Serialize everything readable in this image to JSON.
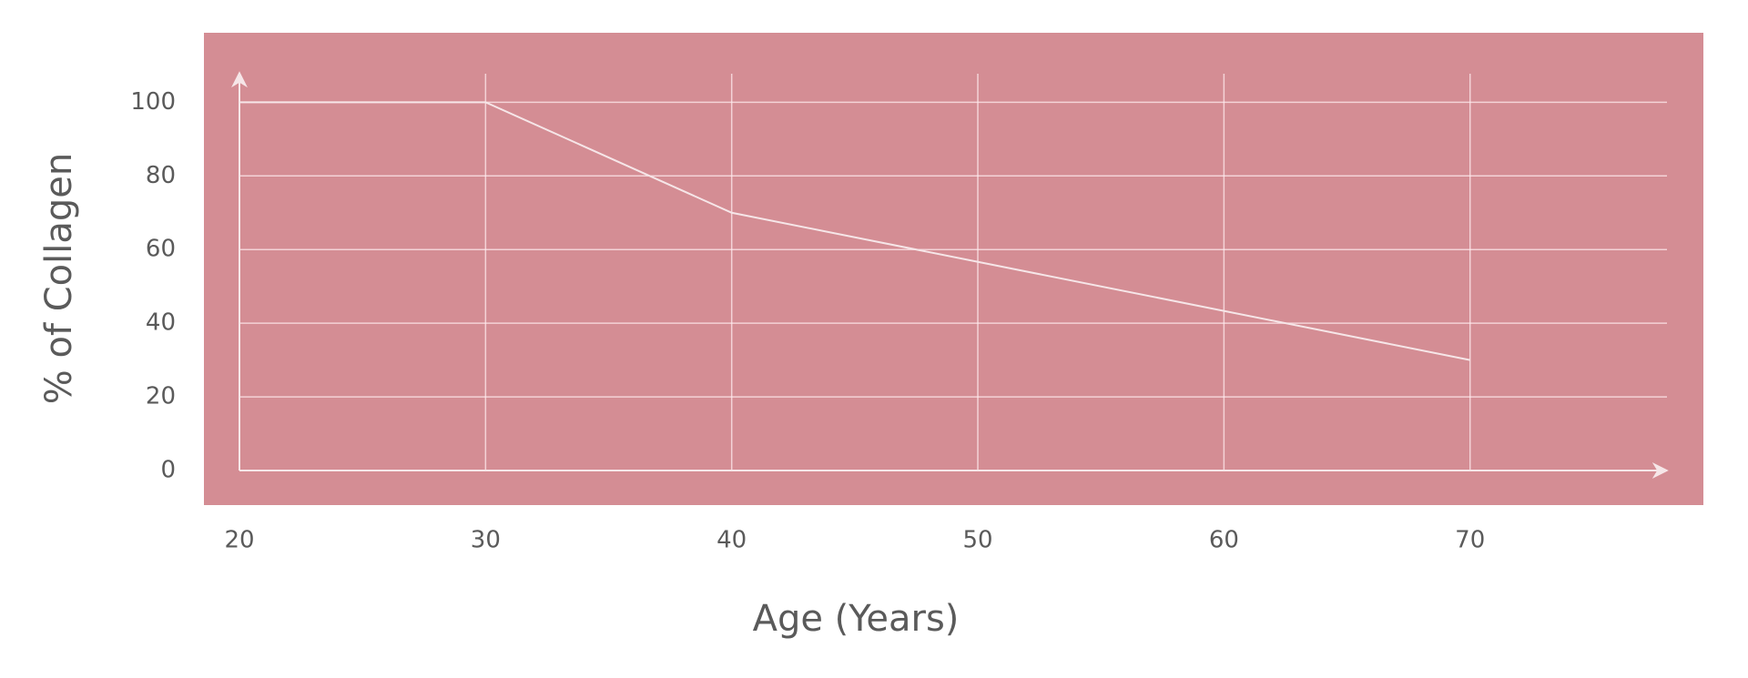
{
  "chart_data": {
    "type": "line",
    "x_label": "Age (Years)",
    "y_label": "% of Collagen",
    "x": [
      20,
      30,
      40,
      70
    ],
    "values": [
      100,
      100,
      70,
      30
    ],
    "color": "#f6e6e8",
    "xlim": [
      20,
      78
    ],
    "xticks": [
      20,
      30,
      40,
      50,
      60,
      70
    ],
    "ylim": [
      0,
      108
    ],
    "yticks": [
      0,
      20,
      40,
      60,
      80,
      100
    ],
    "grid": true,
    "background": "#d48d94"
  }
}
